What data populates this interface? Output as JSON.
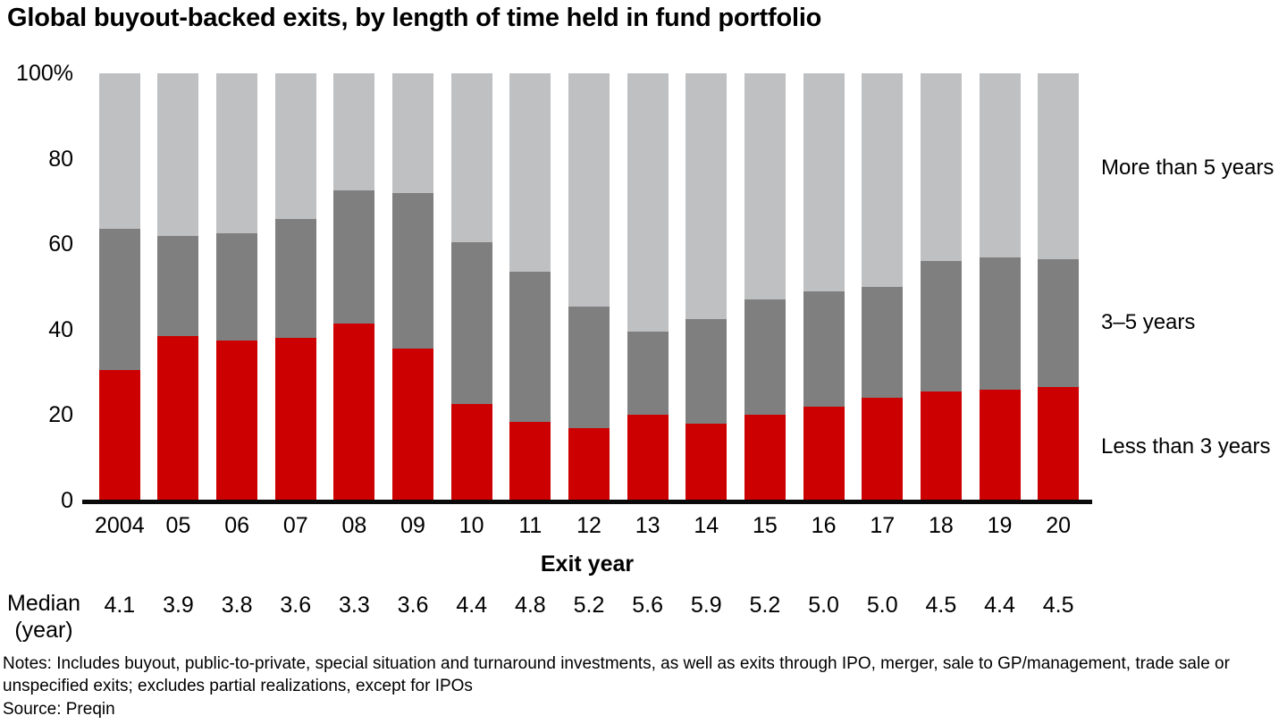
{
  "title": "Global buyout-backed exits, by length of time held in fund portfolio",
  "chart_data": {
    "type": "bar",
    "stacked": true,
    "title": "Global buyout-backed exits, by length of time held in fund portfolio",
    "xlabel": "Exit year",
    "ylabel": "",
    "ylim": [
      0,
      100
    ],
    "grid": false,
    "legend_position": "right",
    "yticks": [
      "100%",
      "80",
      "60",
      "40",
      "20",
      "0"
    ],
    "categories": [
      "2004",
      "05",
      "06",
      "07",
      "08",
      "09",
      "10",
      "11",
      "12",
      "13",
      "14",
      "15",
      "16",
      "17",
      "18",
      "19",
      "20"
    ],
    "series": [
      {
        "name": "Less than 3 years",
        "color": "#cc0000",
        "values": [
          30.5,
          38.5,
          37.5,
          38,
          41.5,
          35.5,
          22.5,
          18.5,
          17,
          20,
          18,
          20,
          22,
          24,
          25.5,
          26,
          26.5
        ]
      },
      {
        "name": "3–5 years",
        "color": "#7f7f7f",
        "values": [
          33,
          23.5,
          25,
          28,
          31,
          36.5,
          38,
          35,
          28.5,
          19.5,
          24.5,
          27,
          27,
          26,
          30.5,
          31,
          30
        ]
      },
      {
        "name": "More than 5 years",
        "color": "#bfc0c2",
        "values": [
          36.5,
          38,
          37.5,
          34,
          27.5,
          28,
          39.5,
          46.5,
          54.5,
          60.5,
          57.5,
          53,
          51,
          50,
          44,
          43,
          43.5
        ]
      }
    ],
    "median_row": {
      "label_line1": "Median",
      "label_line2": "(year)",
      "values": [
        "4.1",
        "3.9",
        "3.8",
        "3.6",
        "3.3",
        "3.6",
        "4.4",
        "4.8",
        "5.2",
        "5.6",
        "5.9",
        "5.2",
        "5.0",
        "5.0",
        "4.5",
        "4.4",
        "4.5"
      ]
    }
  },
  "notes": "Notes: Includes buyout, public-to-private, special situation and turnaround investments, as well as exits through IPO, merger, sale to GP/management, trade sale or unspecified exits; excludes partial realizations, except for IPOs",
  "source": "Source: Preqin"
}
